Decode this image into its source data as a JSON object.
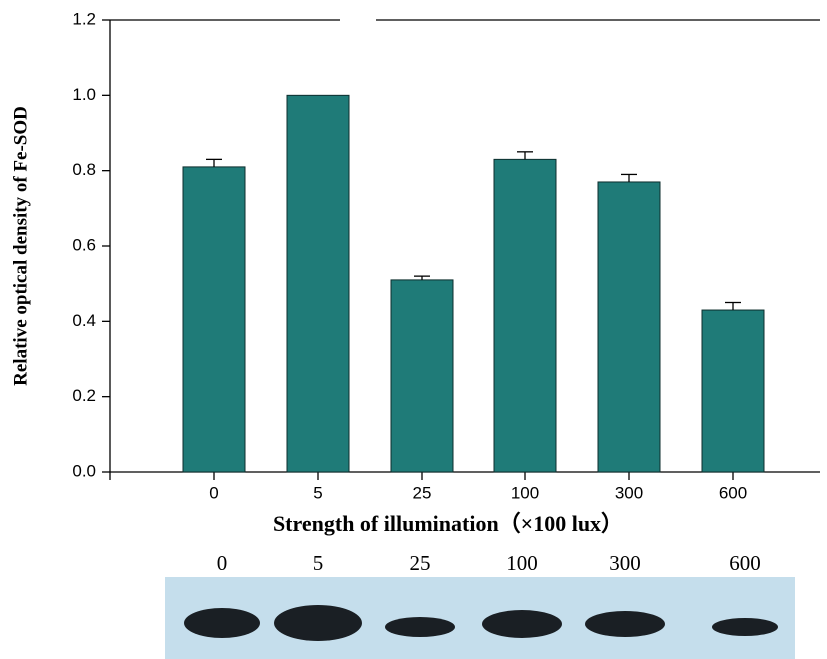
{
  "chart_data": {
    "type": "bar",
    "x_label": "Strength of illumination（×100 lux）",
    "y_label": "Relative optical density of Fe-SOD",
    "categories": [
      "0",
      "5",
      "25",
      "100",
      "300",
      "600"
    ],
    "values": [
      0.81,
      1.0,
      0.51,
      0.83,
      0.77,
      0.43
    ],
    "errors": [
      0.02,
      null,
      0.01,
      0.02,
      0.02,
      0.02
    ],
    "color": "#1f7b78",
    "ylim": [
      0,
      1.2
    ],
    "yticks": [
      {
        "value": 0,
        "label": "0.0"
      },
      0.2,
      0.4,
      0.6,
      0.8,
      {
        "value": 1,
        "label": "1.0"
      },
      1.2
    ]
  },
  "blot": {
    "lanes": [
      "0",
      "5",
      "25",
      "100",
      "300",
      "600"
    ]
  }
}
